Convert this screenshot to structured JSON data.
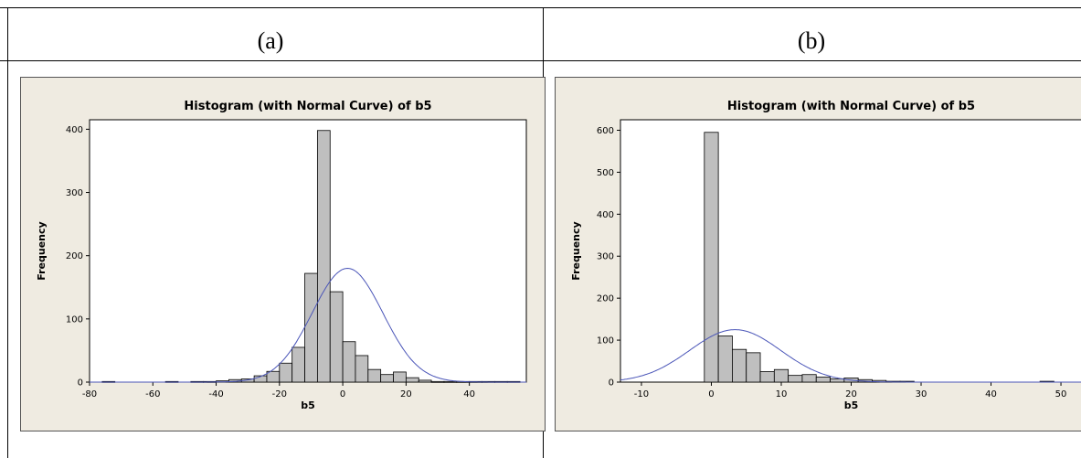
{
  "panels": [
    {
      "caption": "(a)"
    },
    {
      "caption": "(b)"
    }
  ],
  "chart_data": [
    {
      "type": "bar",
      "title": "Histogram (with Normal Curve) of b5",
      "xlabel": "b5",
      "ylabel": "Frequency",
      "xlim": [
        -80,
        58
      ],
      "ylim": [
        0,
        415
      ],
      "xticks": [
        -80,
        -60,
        -40,
        -20,
        0,
        20,
        40
      ],
      "yticks": [
        0,
        100,
        200,
        300,
        400
      ],
      "bin_width": 4,
      "bin_centers": [
        -74,
        -70,
        -66,
        -62,
        -58,
        -54,
        -50,
        -46,
        -42,
        -38,
        -34,
        -30,
        -26,
        -22,
        -18,
        -14,
        -10,
        -6,
        -2,
        2,
        6,
        10,
        14,
        18,
        22,
        26,
        30,
        34,
        38,
        42,
        46,
        50,
        54
      ],
      "counts": [
        1,
        0,
        0,
        0,
        0,
        1,
        0,
        1,
        1,
        2,
        4,
        5,
        10,
        17,
        30,
        55,
        172,
        398,
        143,
        64,
        42,
        20,
        12,
        16,
        7,
        3,
        1,
        1,
        1,
        1,
        1,
        1,
        1
      ],
      "normal_curve": {
        "mean": 1.5,
        "sd": 11.2,
        "peak": 180
      }
    },
    {
      "type": "bar",
      "title": "Histogram (with Normal Curve) of b5",
      "xlabel": "b5",
      "ylabel": "Frequency",
      "xlim": [
        -13,
        53
      ],
      "ylim": [
        0,
        625
      ],
      "xticks": [
        -10,
        0,
        10,
        20,
        30,
        40,
        50
      ],
      "yticks": [
        0,
        100,
        200,
        300,
        400,
        500,
        600
      ],
      "bin_width": 2,
      "bin_centers": [
        0,
        2,
        4,
        6,
        8,
        10,
        12,
        14,
        16,
        18,
        20,
        22,
        24,
        26,
        28,
        48
      ],
      "counts": [
        595,
        110,
        78,
        70,
        25,
        30,
        16,
        18,
        12,
        8,
        10,
        6,
        4,
        2,
        2,
        2
      ],
      "normal_curve": {
        "mean": 3.4,
        "sd": 6.5,
        "peak": 125
      }
    }
  ]
}
